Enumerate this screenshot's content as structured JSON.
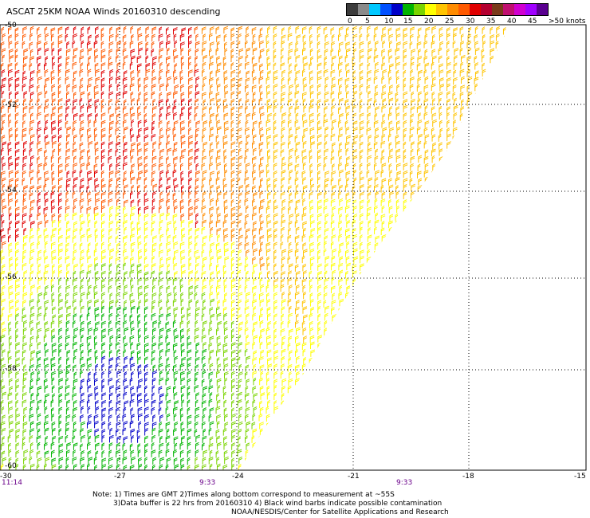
{
  "title": "ASCAT 25KM NOAA Winds 20160310 descending",
  "legend": {
    "ticks": [
      "0",
      "5",
      "10",
      "15",
      "20",
      "25",
      "30",
      "35",
      "40",
      "45",
      ">50 knots"
    ],
    "colors": [
      "#3c3c3c",
      "#8a8a8a",
      "#00c8ff",
      "#0050ff",
      "#0000c8",
      "#00b400",
      "#7ad400",
      "#ffff00",
      "#ffc400",
      "#ff8c00",
      "#ff5a00",
      "#e00000",
      "#b40030",
      "#7a3a1a",
      "#c01070",
      "#d000d0",
      "#a000ff",
      "#5a0090"
    ]
  },
  "map": {
    "lat_labels": [
      "-50",
      "-52",
      "-54",
      "-56",
      "-58",
      "-60"
    ],
    "lon_labels": [
      "-30",
      "-27",
      "-24",
      "-21",
      "-18",
      "-15"
    ],
    "time_labels": [
      "11:14",
      "9:33",
      "9:33"
    ]
  },
  "notes": {
    "line1": "Note: 1) Times are GMT 2)Times along bottom correspond to measurement at ~55S",
    "line2": "3)Data buffer is 22 hrs from 20160310 4) Black wind barbs indicate possible contamination",
    "line3": "NOAA/NESDIS/Center for Satellite Applications and Research"
  }
}
